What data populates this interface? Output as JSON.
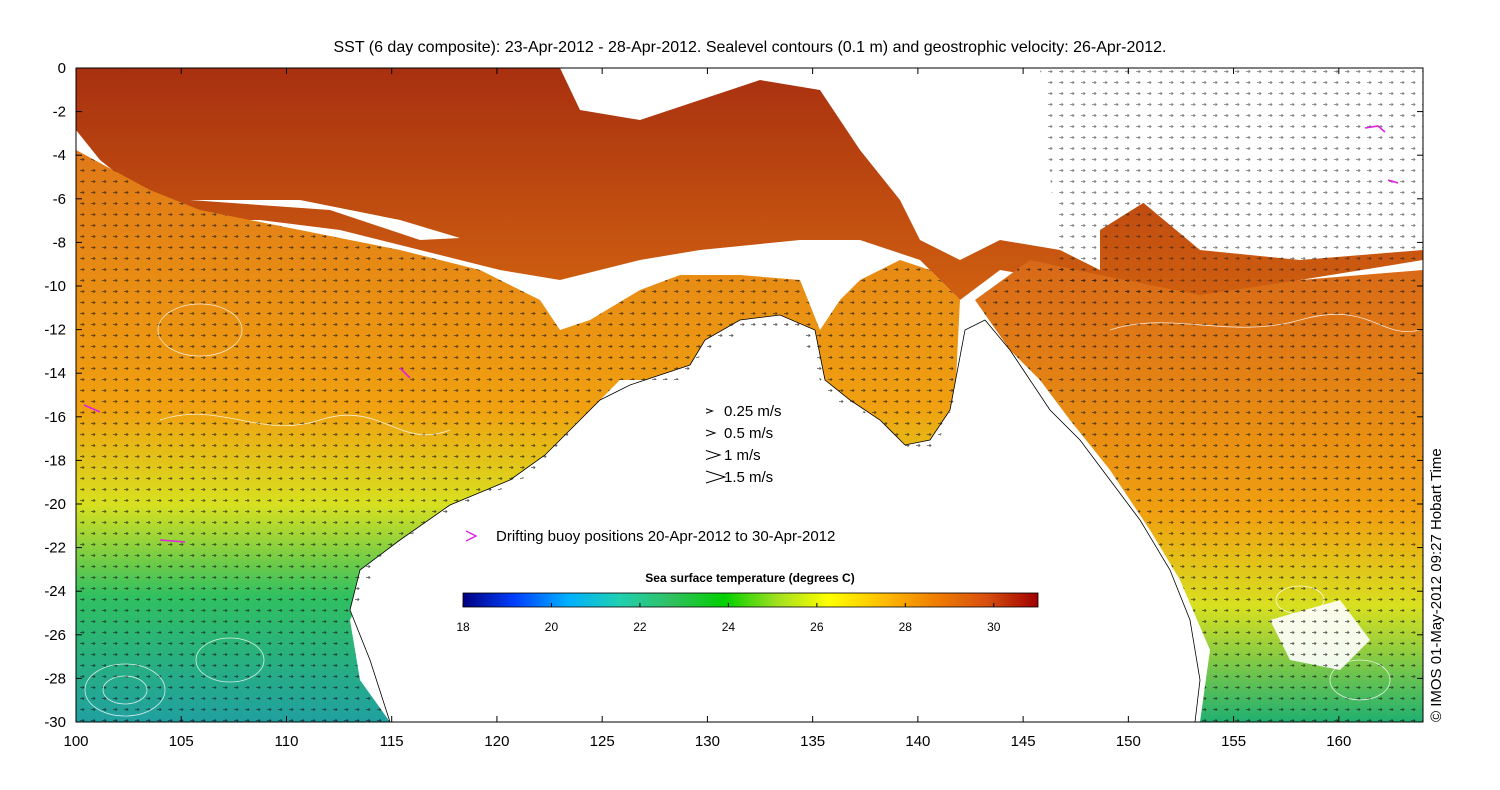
{
  "title": "SST (6 day composite): 23-Apr-2012 - 28-Apr-2012. Sealevel contours (0.1 m) and geostrophic velocity: 26-Apr-2012.",
  "credit": "© IMOS 01-May-2012 09:27 Hobart Time",
  "chart_data": {
    "type": "heatmap",
    "x_ticks": [
      "100",
      "105",
      "110",
      "115",
      "120",
      "125",
      "130",
      "135",
      "140",
      "145",
      "150",
      "155",
      "160"
    ],
    "y_ticks": [
      "0",
      "-2",
      "-4",
      "-6",
      "-8",
      "-10",
      "-12",
      "-14",
      "-16",
      "-18",
      "-20",
      "-22",
      "-24",
      "-26",
      "-28",
      "-30"
    ],
    "xlim": [
      100,
      164
    ],
    "ylim": [
      -30,
      0
    ],
    "grid": false
  },
  "velocity_legend": [
    {
      "label": "0.25 m/s",
      "speed": 0.25
    },
    {
      "label": "0.5 m/s",
      "speed": 0.5
    },
    {
      "label": "1 m/s",
      "speed": 1
    },
    {
      "label": "1.5 m/s",
      "speed": 1.5
    }
  ],
  "buoy_legend": {
    "label": "Drifting buoy positions 20-Apr-2012 to 30-Apr-2012",
    "color": "#e020e0"
  },
  "colorbar": {
    "title": "Sea surface temperature (degrees C)",
    "ticks": [
      "18",
      "20",
      "22",
      "24",
      "26",
      "28",
      "30"
    ],
    "range": [
      18,
      31
    ],
    "colors": [
      "#000080",
      "#0040ff",
      "#00b0ff",
      "#20d0b0",
      "#30c060",
      "#00d000",
      "#a0e020",
      "#ffff00",
      "#ffc000",
      "#f08000",
      "#d85010",
      "#a00000"
    ]
  }
}
